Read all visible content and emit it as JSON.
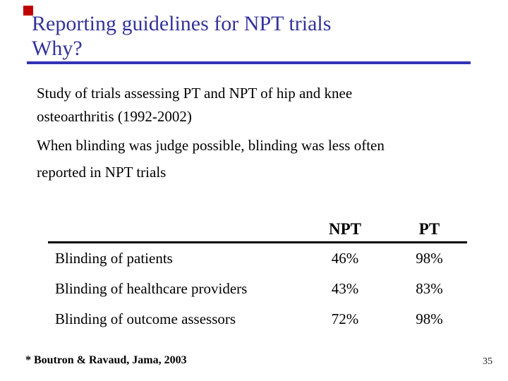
{
  "slide": {
    "title_line1": "Reporting guidelines for NPT trials",
    "title_line2": "Why?",
    "body": {
      "para1_line1": "Study of trials assessing PT and NPT of hip and knee",
      "para1_line2": "osteoarthritis (1992-2002)",
      "para2_line1": "When blinding was judge possible, blinding was less often",
      "para2_line2": "reported in NPT trials"
    },
    "footnote": "* Boutron & Ravaud, Jama, 2003",
    "page_number": "35"
  },
  "table": {
    "columns": {
      "col1": "NPT",
      "col2": "PT"
    },
    "rows": [
      {
        "label": "Blinding of patients",
        "npt": "46%",
        "pt": "98%"
      },
      {
        "label": "Blinding of healthcare providers",
        "npt": "43%",
        "pt": "83%"
      },
      {
        "label": "Blinding of outcome assessors",
        "npt": "72%",
        "pt": "98%"
      }
    ]
  },
  "colors": {
    "title_text": "#333399",
    "title_rule": "#3333B4",
    "table_rule": "#000000",
    "accent_square": "#C00000",
    "body_text": "#000000"
  }
}
